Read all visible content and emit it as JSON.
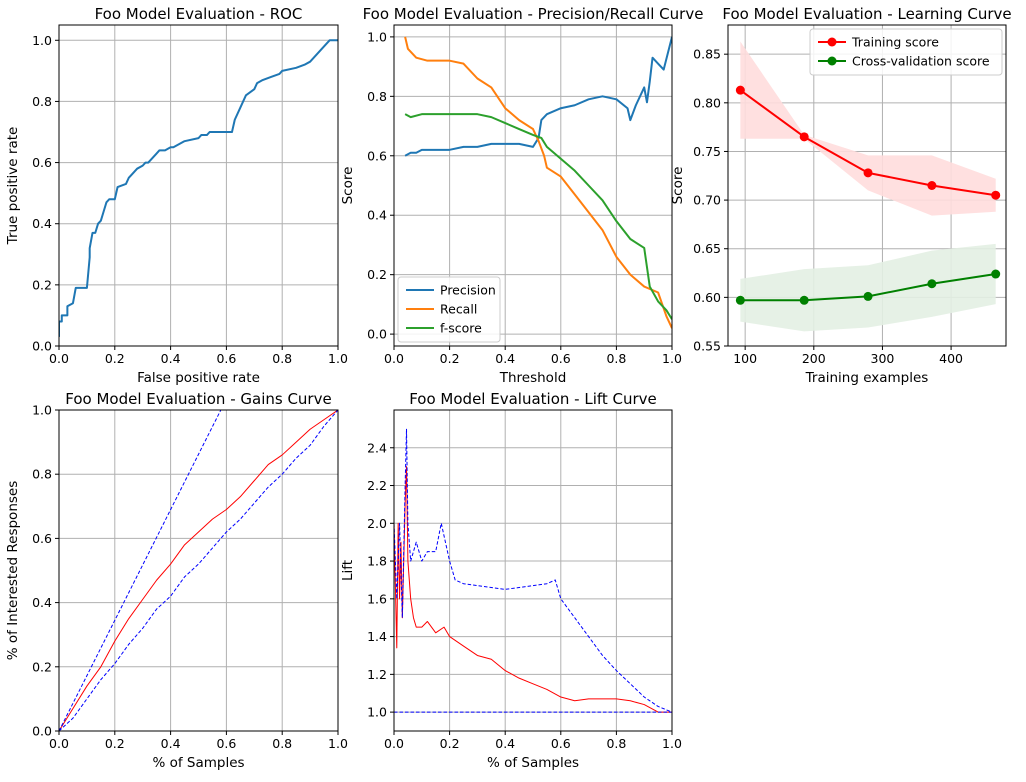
{
  "chart_data": [
    {
      "id": "roc",
      "type": "line",
      "title": "Foo Model Evaluation - ROC",
      "xlabel": "False positive rate",
      "ylabel": "True positive rate",
      "xlim": [
        0,
        1
      ],
      "ylim": [
        0,
        1.05
      ],
      "xticks": [
        "0.0",
        "0.2",
        "0.4",
        "0.6",
        "0.8",
        "1.0"
      ],
      "yticks": [
        "0.0",
        "0.2",
        "0.4",
        "0.6",
        "0.8",
        "1.0"
      ],
      "grid": true,
      "series": [
        {
          "color": "#1f77b4",
          "x": [
            0,
            0,
            0.01,
            0.01,
            0.03,
            0.03,
            0.05,
            0.06,
            0.07,
            0.07,
            0.1,
            0.11,
            0.11,
            0.12,
            0.13,
            0.14,
            0.15,
            0.16,
            0.17,
            0.18,
            0.19,
            0.2,
            0.21,
            0.24,
            0.25,
            0.26,
            0.28,
            0.3,
            0.31,
            0.32,
            0.35,
            0.36,
            0.38,
            0.4,
            0.41,
            0.45,
            0.5,
            0.51,
            0.53,
            0.54,
            0.55,
            0.62,
            0.63,
            0.65,
            0.67,
            0.7,
            0.71,
            0.73,
            0.76,
            0.79,
            0.8,
            0.85,
            0.88,
            0.9,
            0.92,
            0.94,
            0.96,
            0.97,
            1.0
          ],
          "y": [
            0.03,
            0.08,
            0.08,
            0.1,
            0.1,
            0.13,
            0.14,
            0.19,
            0.19,
            0.19,
            0.19,
            0.29,
            0.32,
            0.37,
            0.37,
            0.4,
            0.41,
            0.44,
            0.47,
            0.48,
            0.48,
            0.48,
            0.52,
            0.53,
            0.55,
            0.56,
            0.58,
            0.59,
            0.6,
            0.6,
            0.63,
            0.64,
            0.64,
            0.65,
            0.65,
            0.67,
            0.68,
            0.69,
            0.69,
            0.7,
            0.7,
            0.7,
            0.74,
            0.78,
            0.82,
            0.84,
            0.86,
            0.87,
            0.88,
            0.89,
            0.9,
            0.91,
            0.92,
            0.93,
            0.95,
            0.97,
            0.99,
            1.0,
            1.0
          ]
        }
      ]
    },
    {
      "id": "prc",
      "type": "line",
      "title": "Foo Model Evaluation - Precision/Recall Curve",
      "xlabel": "Threshold",
      "ylabel": "Score",
      "xlim": [
        0,
        1
      ],
      "ylim": [
        -0.04,
        1.04
      ],
      "xticks": [
        "0.0",
        "0.2",
        "0.4",
        "0.6",
        "0.8",
        "1.0"
      ],
      "yticks": [
        "0.0",
        "0.2",
        "0.4",
        "0.6",
        "0.8",
        "1.0"
      ],
      "grid": true,
      "legend": "lower-left",
      "series": [
        {
          "name": "Precision",
          "color": "#1f77b4",
          "x": [
            0.04,
            0.06,
            0.08,
            0.1,
            0.15,
            0.2,
            0.25,
            0.3,
            0.35,
            0.4,
            0.45,
            0.5,
            0.52,
            0.53,
            0.55,
            0.6,
            0.65,
            0.7,
            0.75,
            0.8,
            0.84,
            0.85,
            0.87,
            0.9,
            0.91,
            0.92,
            0.93,
            0.95,
            0.97,
            1.0
          ],
          "y": [
            0.6,
            0.61,
            0.61,
            0.62,
            0.62,
            0.62,
            0.63,
            0.63,
            0.64,
            0.64,
            0.64,
            0.63,
            0.66,
            0.72,
            0.74,
            0.76,
            0.77,
            0.79,
            0.8,
            0.79,
            0.76,
            0.72,
            0.77,
            0.83,
            0.78,
            0.85,
            0.93,
            0.91,
            0.89,
            1.0
          ]
        },
        {
          "name": "Recall",
          "color": "#ff7f0e",
          "x": [
            0.04,
            0.05,
            0.08,
            0.12,
            0.2,
            0.25,
            0.3,
            0.35,
            0.4,
            0.45,
            0.5,
            0.52,
            0.54,
            0.55,
            0.6,
            0.65,
            0.7,
            0.75,
            0.8,
            0.85,
            0.9,
            0.95,
            0.98,
            1.0
          ],
          "y": [
            1.0,
            0.96,
            0.93,
            0.92,
            0.92,
            0.91,
            0.86,
            0.83,
            0.76,
            0.72,
            0.69,
            0.65,
            0.6,
            0.56,
            0.53,
            0.47,
            0.41,
            0.35,
            0.26,
            0.2,
            0.16,
            0.14,
            0.06,
            0.02
          ]
        },
        {
          "name": "f-score",
          "color": "#2ca02c",
          "x": [
            0.04,
            0.06,
            0.1,
            0.2,
            0.3,
            0.35,
            0.4,
            0.45,
            0.5,
            0.53,
            0.55,
            0.6,
            0.65,
            0.7,
            0.75,
            0.8,
            0.85,
            0.9,
            0.92,
            0.95,
            0.98,
            1.0
          ],
          "y": [
            0.74,
            0.73,
            0.74,
            0.74,
            0.74,
            0.73,
            0.71,
            0.69,
            0.67,
            0.66,
            0.63,
            0.59,
            0.55,
            0.5,
            0.45,
            0.38,
            0.32,
            0.29,
            0.16,
            0.11,
            0.08,
            0.05
          ]
        }
      ]
    },
    {
      "id": "learning",
      "type": "line",
      "title": "Foo Model Evaluation - Learning Curve",
      "xlabel": "Training examples",
      "ylabel": "Score",
      "xlim": [
        75,
        480
      ],
      "ylim": [
        0.55,
        0.88
      ],
      "xticks": [
        "100",
        "200",
        "300",
        "400"
      ],
      "yticks": [
        "0.55",
        "0.60",
        "0.65",
        "0.70",
        "0.75",
        "0.80",
        "0.85"
      ],
      "grid": true,
      "legend": "top-right",
      "series": [
        {
          "name": "Training score",
          "color": "#ff0000",
          "band_color": "#ffdddd",
          "x": [
            93,
            186,
            279,
            372,
            465
          ],
          "y": [
            0.813,
            0.765,
            0.728,
            0.715,
            0.705
          ],
          "lower": [
            0.763,
            0.763,
            0.71,
            0.684,
            0.688
          ],
          "upper": [
            0.863,
            0.767,
            0.746,
            0.746,
            0.722
          ]
        },
        {
          "name": "Cross-validation score",
          "color": "#008000",
          "band_color": "#e3efe3",
          "x": [
            93,
            186,
            279,
            372,
            465
          ],
          "y": [
            0.597,
            0.597,
            0.601,
            0.614,
            0.624
          ],
          "lower": [
            0.575,
            0.565,
            0.569,
            0.58,
            0.593
          ],
          "upper": [
            0.619,
            0.629,
            0.633,
            0.648,
            0.655
          ]
        }
      ]
    },
    {
      "id": "gains",
      "type": "line",
      "title": "Foo Model Evaluation - Gains Curve",
      "xlabel": "% of Samples",
      "ylabel": "% of Interested Responses",
      "xlim": [
        0,
        1
      ],
      "ylim": [
        0,
        1
      ],
      "xticks": [
        "0.0",
        "0.2",
        "0.4",
        "0.6",
        "0.8",
        "1.0"
      ],
      "yticks": [
        "0.0",
        "0.2",
        "0.4",
        "0.6",
        "0.8",
        "1.0"
      ],
      "grid": true,
      "series": [
        {
          "color": "#ff0000",
          "style": "solid",
          "x": [
            0,
            0.05,
            0.1,
            0.15,
            0.2,
            0.25,
            0.3,
            0.35,
            0.4,
            0.45,
            0.5,
            0.55,
            0.6,
            0.65,
            0.7,
            0.75,
            0.8,
            0.85,
            0.9,
            0.95,
            1.0
          ],
          "y": [
            0,
            0.07,
            0.14,
            0.2,
            0.28,
            0.35,
            0.41,
            0.47,
            0.52,
            0.58,
            0.62,
            0.66,
            0.69,
            0.73,
            0.78,
            0.83,
            0.86,
            0.9,
            0.94,
            0.97,
            1.0
          ]
        },
        {
          "color": "#0000ff",
          "style": "dashed",
          "x": [
            0,
            0.58
          ],
          "y": [
            0,
            1.0
          ]
        },
        {
          "color": "#0000ff",
          "style": "dashed",
          "x": [
            0,
            0.05,
            0.1,
            0.15,
            0.2,
            0.25,
            0.3,
            0.35,
            0.4,
            0.45,
            0.5,
            0.55,
            0.6,
            0.65,
            0.7,
            0.75,
            0.8,
            0.85,
            0.9,
            0.95,
            1.0
          ],
          "y": [
            0,
            0.04,
            0.1,
            0.16,
            0.21,
            0.27,
            0.32,
            0.38,
            0.42,
            0.48,
            0.52,
            0.57,
            0.62,
            0.66,
            0.71,
            0.76,
            0.8,
            0.85,
            0.89,
            0.95,
            1.0
          ]
        }
      ]
    },
    {
      "id": "lift",
      "type": "line",
      "title": "Foo Model Evaluation - Lift Curve",
      "xlabel": "% of Samples",
      "ylabel": "Lift",
      "xlim": [
        0,
        1
      ],
      "ylim": [
        0.9,
        2.6
      ],
      "xticks": [
        "0.0",
        "0.2",
        "0.4",
        "0.6",
        "0.8",
        "1.0"
      ],
      "yticks": [
        "1.0",
        "1.2",
        "1.4",
        "1.6",
        "1.8",
        "2.0",
        "2.2",
        "2.4"
      ],
      "grid": true,
      "series": [
        {
          "color": "#ff0000",
          "style": "solid",
          "x": [
            0,
            0.01,
            0.015,
            0.02,
            0.025,
            0.03,
            0.04,
            0.045,
            0.05,
            0.06,
            0.07,
            0.08,
            0.1,
            0.12,
            0.15,
            0.18,
            0.2,
            0.25,
            0.3,
            0.35,
            0.4,
            0.45,
            0.5,
            0.55,
            0.6,
            0.65,
            0.7,
            0.75,
            0.8,
            0.85,
            0.9,
            0.95,
            1.0
          ],
          "y": [
            2.0,
            1.34,
            2.0,
            1.6,
            1.9,
            1.5,
            2.1,
            2.3,
            1.8,
            1.6,
            1.5,
            1.45,
            1.45,
            1.48,
            1.42,
            1.45,
            1.4,
            1.35,
            1.3,
            1.28,
            1.22,
            1.18,
            1.15,
            1.12,
            1.08,
            1.06,
            1.07,
            1.07,
            1.07,
            1.06,
            1.04,
            1.0,
            1.0
          ]
        },
        {
          "color": "#0000ff",
          "style": "dashed",
          "x": [
            0,
            0.01,
            0.02,
            0.03,
            0.04,
            0.045,
            0.05,
            0.06,
            0.07,
            0.08,
            0.1,
            0.12,
            0.15,
            0.17,
            0.2,
            0.22,
            0.25,
            0.3,
            0.35,
            0.4,
            0.45,
            0.5,
            0.55,
            0.58,
            0.6,
            0.65,
            0.7,
            0.75,
            0.8,
            0.85,
            0.9,
            0.95,
            1.0
          ],
          "y": [
            2.0,
            1.6,
            2.0,
            1.5,
            2.2,
            2.5,
            2.0,
            1.8,
            1.85,
            1.9,
            1.8,
            1.85,
            1.85,
            2.0,
            1.8,
            1.7,
            1.68,
            1.67,
            1.66,
            1.65,
            1.66,
            1.67,
            1.68,
            1.7,
            1.6,
            1.5,
            1.4,
            1.3,
            1.22,
            1.15,
            1.08,
            1.03,
            1.0
          ]
        },
        {
          "color": "#0000ff",
          "style": "dashed",
          "x": [
            0,
            1
          ],
          "y": [
            1.0,
            1.0
          ]
        }
      ]
    }
  ]
}
